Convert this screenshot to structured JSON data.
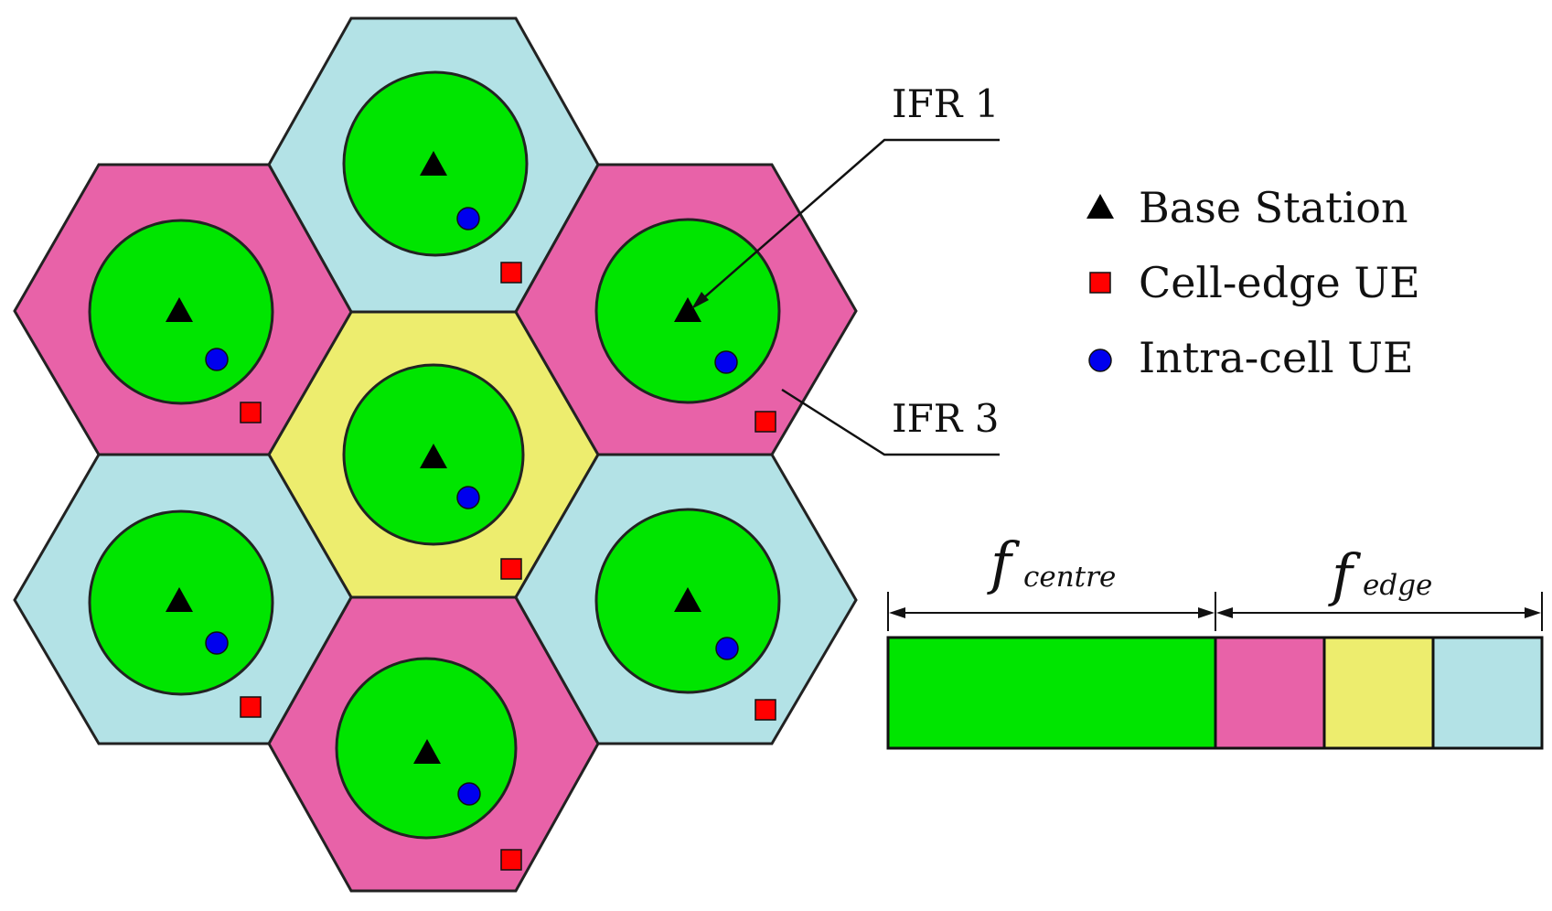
{
  "colors": {
    "pink": "#E862A8",
    "light_blue": "#B3E2E6",
    "yellow": "#EDED6E",
    "green": "#00E500",
    "base_station": "#000000",
    "cell_edge_ue": "#FF0000",
    "intra_cell_ue": "#0000EE"
  },
  "labels": {
    "ifr1": "IFR 1",
    "ifr3": "IFR 3"
  },
  "legend": {
    "base_station": "Base Station",
    "cell_edge_ue": "Cell-edge UE",
    "intra_cell_ue": "Intra-cell UE"
  },
  "spectrum": {
    "centre_label": "f",
    "centre_sub": "centre",
    "edge_label": "f",
    "edge_sub": "edge"
  },
  "icons": {
    "base_station": "triangle-icon",
    "cell_edge_ue": "square-icon",
    "intra_cell_ue": "circle-icon"
  }
}
